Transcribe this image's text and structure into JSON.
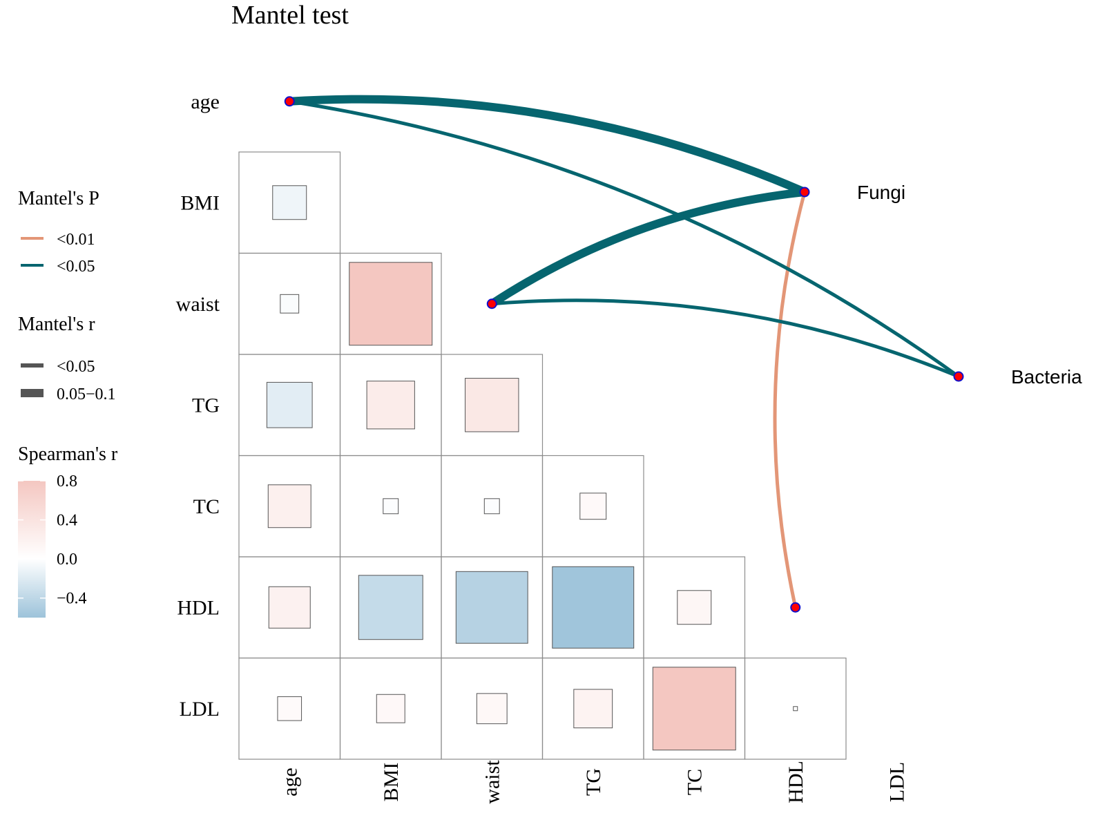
{
  "chart_data": {
    "type": "heatmap",
    "title": "Mantel test",
    "variables": [
      "age",
      "BMI",
      "waist",
      "TG",
      "TC",
      "HDL",
      "LDL"
    ],
    "spearman_r": [
      {
        "row": "BMI",
        "col": "age",
        "r": -0.1
      },
      {
        "row": "waist",
        "col": "age",
        "r": -0.03
      },
      {
        "row": "waist",
        "col": "BMI",
        "r": 0.6
      },
      {
        "row": "TG",
        "col": "age",
        "r": -0.18
      },
      {
        "row": "TG",
        "col": "BMI",
        "r": 0.2
      },
      {
        "row": "TG",
        "col": "waist",
        "r": 0.25
      },
      {
        "row": "TC",
        "col": "age",
        "r": 0.16
      },
      {
        "row": "TC",
        "col": "BMI",
        "r": -0.02
      },
      {
        "row": "TC",
        "col": "waist",
        "r": -0.02
      },
      {
        "row": "TC",
        "col": "TG",
        "r": 0.06
      },
      {
        "row": "HDL",
        "col": "age",
        "r": 0.15
      },
      {
        "row": "HDL",
        "col": "BMI",
        "r": -0.36
      },
      {
        "row": "HDL",
        "col": "waist",
        "r": -0.45
      },
      {
        "row": "HDL",
        "col": "TG",
        "r": -0.58
      },
      {
        "row": "HDL",
        "col": "TC",
        "r": 0.1
      },
      {
        "row": "LDL",
        "col": "age",
        "r": 0.05
      },
      {
        "row": "LDL",
        "col": "BMI",
        "r": 0.07
      },
      {
        "row": "LDL",
        "col": "waist",
        "r": 0.08
      },
      {
        "row": "LDL",
        "col": "TG",
        "r": 0.13
      },
      {
        "row": "LDL",
        "col": "TC",
        "r": 0.6
      },
      {
        "row": "LDL",
        "col": "HDL",
        "r": 0.0
      }
    ],
    "groups": [
      "Fungi",
      "Bacteria"
    ],
    "mantel_links": [
      {
        "from": "Fungi",
        "to": "age",
        "p": "<0.05",
        "r": "0.05-0.1"
      },
      {
        "from": "Fungi",
        "to": "waist",
        "p": "<0.05",
        "r": "0.05-0.1"
      },
      {
        "from": "Fungi",
        "to": "HDL",
        "p": "<0.01",
        "r": "<0.05"
      },
      {
        "from": "Bacteria",
        "to": "age",
        "p": "<0.05",
        "r": "<0.05"
      },
      {
        "from": "Bacteria",
        "to": "waist",
        "p": "<0.05",
        "r": "<0.05"
      }
    ],
    "legend": {
      "mantel_p": {
        "title": "Mantel's P",
        "items": [
          {
            "label": "<0.01",
            "color": "#E39677"
          },
          {
            "label": "<0.05",
            "color": "#06656F"
          }
        ]
      },
      "mantel_r": {
        "title": "Mantel's r",
        "items": [
          {
            "label": "<0.05"
          },
          {
            "label": "0.05−0.1"
          }
        ]
      },
      "spearman": {
        "title": "Spearman's r",
        "ticks": [
          0.8,
          0.4,
          0.0,
          -0.4
        ],
        "tick_labels": [
          "0.8",
          "0.4",
          "0.0",
          "−0.4"
        ],
        "range": [
          -0.6,
          0.8
        ]
      }
    },
    "colors": {
      "positive": "#F4C7C1",
      "negative": "#9DC3DA",
      "neutral": "#FFFFFF",
      "p_lt_001": "#E39677",
      "p_lt_005": "#06656F",
      "node_fill": "#FF0000",
      "node_stroke": "#1010CC"
    }
  }
}
